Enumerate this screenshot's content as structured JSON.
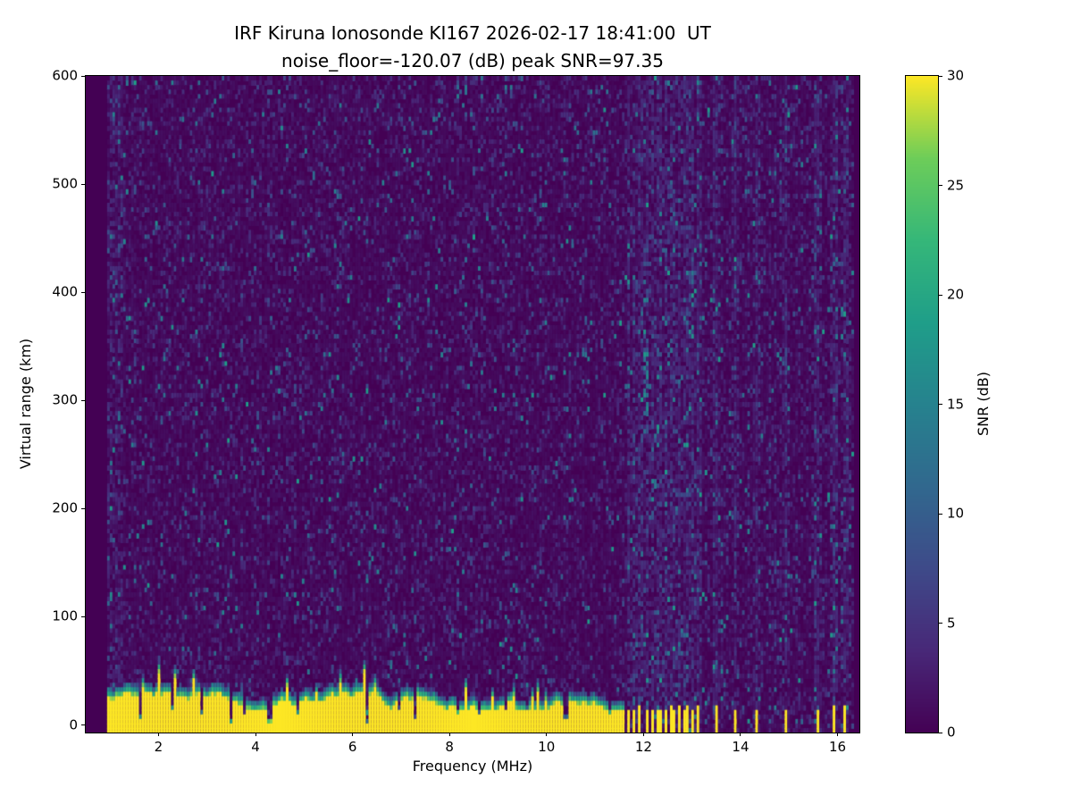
{
  "chart_data": {
    "type": "heatmap",
    "title": "IRF Kiruna Ionosonde KI167 2026-02-17 18:41:00  UT",
    "subtitle": "noise_floor=-120.07 (dB) peak SNR=97.35",
    "station": "KI167",
    "site": "IRF Kiruna Ionosonde",
    "timestamp_ut": "2026-02-17 18:41:00",
    "noise_floor_db": -120.07,
    "peak_snr_db": 97.35,
    "xlabel": "Frequency (MHz)",
    "ylabel": "Virtual range (km)",
    "colorbar_label": "SNR (dB)",
    "xlim": [
      0.5,
      16.45
    ],
    "ylim": [
      -7,
      600
    ],
    "clim": [
      0,
      30
    ],
    "xticks": [
      2,
      4,
      6,
      8,
      10,
      12,
      14,
      16
    ],
    "yticks": [
      0,
      100,
      200,
      300,
      400,
      500,
      600
    ],
    "colorbar_ticks": [
      0,
      5,
      10,
      15,
      20,
      25,
      30
    ],
    "colormap": "viridis",
    "colormap_stops": [
      [
        0.0,
        [
          68,
          1,
          84
        ]
      ],
      [
        0.125,
        [
          72,
          40,
          120
        ]
      ],
      [
        0.25,
        [
          62,
          74,
          137
        ]
      ],
      [
        0.375,
        [
          49,
          104,
          142
        ]
      ],
      [
        0.5,
        [
          38,
          130,
          142
        ]
      ],
      [
        0.625,
        [
          31,
          158,
          137
        ]
      ],
      [
        0.75,
        [
          53,
          183,
          121
        ]
      ],
      [
        0.875,
        [
          109,
          205,
          89
        ]
      ],
      [
        1.0,
        [
          253,
          231,
          37
        ]
      ]
    ],
    "features": {
      "data_freq_range_mhz": [
        0.95,
        16.35
      ],
      "ground_clutter": {
        "freq_range_mhz": [
          0.95,
          11.62
        ],
        "mean_top_km": 30,
        "solid_top_km": 20,
        "max_snr_db": 30,
        "notches_mhz": [
          [
            1.65,
            0.06,
            6
          ],
          [
            2.3,
            0.05,
            14
          ],
          [
            2.9,
            0.06,
            9
          ],
          [
            3.5,
            0.08,
            2
          ],
          [
            3.75,
            0.05,
            8
          ],
          [
            4.3,
            0.07,
            3
          ],
          [
            4.85,
            0.05,
            10
          ],
          [
            5.4,
            0.04,
            14
          ],
          [
            6.3,
            0.08,
            1
          ],
          [
            6.95,
            0.04,
            13
          ],
          [
            7.3,
            0.06,
            4
          ],
          [
            8.15,
            0.05,
            11
          ],
          [
            8.6,
            0.05,
            9
          ],
          [
            9.15,
            0.04,
            12
          ],
          [
            9.6,
            0.05,
            13
          ],
          [
            10.4,
            0.06,
            5
          ],
          [
            10.95,
            0.05,
            9
          ],
          [
            11.3,
            0.04,
            11
          ]
        ]
      },
      "rfi_stripes_mhz": [
        11.68,
        11.8,
        11.93,
        12.06,
        12.19,
        12.32,
        12.46,
        12.6,
        12.74,
        12.88,
        13.02,
        13.14,
        13.5,
        13.88,
        14.32,
        14.95,
        15.58,
        15.92,
        16.15
      ],
      "stripe_top_km": 16,
      "hot_column": {
        "freq_mhz": 12.05,
        "range_km": [
          285,
          345
        ]
      },
      "noise": {
        "speckle_fraction": 0.26,
        "seed": 20260217
      }
    }
  }
}
